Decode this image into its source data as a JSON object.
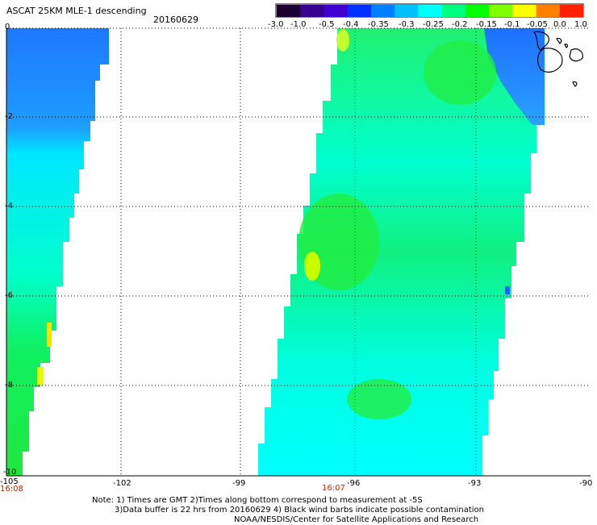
{
  "header": {
    "title": "ASCAT 25KM MLE-1 descending",
    "date": "20160629"
  },
  "colorbar": {
    "labels": [
      "-3.0",
      "-1.0",
      "-0.5",
      "-0.4",
      "-0.35",
      "-0.3",
      "-0.25",
      "-0.2",
      "-0.15",
      "-0.1",
      "-0.05",
      "0.0",
      "1.0"
    ],
    "colors": [
      "#1a0030",
      "#3a0090",
      "#4000d0",
      "#0030ff",
      "#0080ff",
      "#00c0ff",
      "#00ffff",
      "#00ff80",
      "#00ff00",
      "#80ff00",
      "#ffff00",
      "#ff8000",
      "#ff2000"
    ]
  },
  "map": {
    "y_labels": [
      "0",
      "-2",
      "-4",
      "-6",
      "-8",
      "-10"
    ],
    "x_labels": [
      "-105",
      "-102",
      "-99",
      "-96",
      "-93",
      "-90"
    ],
    "swath_times": [
      "16:08",
      "16:07"
    ]
  },
  "notes": {
    "line1": "Note: 1) Times are GMT 2)Times along bottom correspond to measurement at -5S",
    "line2": "3)Data buffer is 22 hrs from 20160629 4) Black wind barbs indicate possible contamination",
    "line3": "NOAA/NESDIS/Center for Satellite Applications and Research"
  }
}
